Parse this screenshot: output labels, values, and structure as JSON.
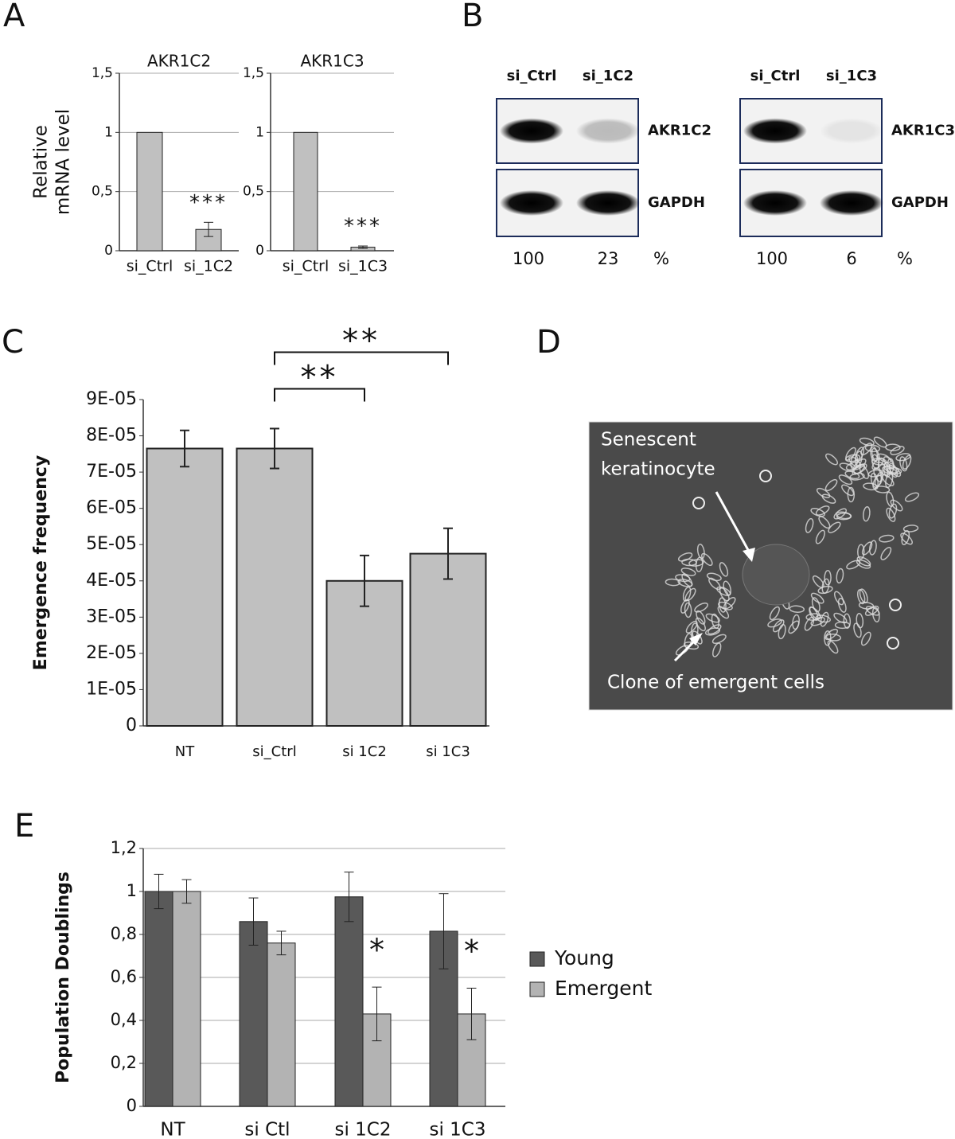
{
  "chart_data": [
    {
      "type": "bar",
      "title": "AKR1C2",
      "ylabel_lines": [
        "Relative",
        "mRNA level"
      ],
      "categories": [
        "si_Ctrl",
        "si_1C2"
      ],
      "values": [
        1,
        0.18
      ],
      "errors": [
        null,
        0.06
      ],
      "color": "#c0c0c0",
      "ylim": [
        0,
        1.5
      ],
      "yticks": [
        0,
        {
          "value": 0.5,
          "label": "0,5"
        },
        1,
        {
          "value": 1.5,
          "label": "1,5"
        }
      ],
      "grid": true,
      "annotations": [
        {
          "index": 1,
          "text": "***"
        }
      ]
    },
    {
      "type": "bar",
      "title": "AKR1C3",
      "categories": [
        "si_Ctrl",
        "si_1C3"
      ],
      "values": [
        1,
        0.03
      ],
      "errors": [
        null,
        0.01
      ],
      "color": "#c0c0c0",
      "ylim": [
        0,
        1.5
      ],
      "yticks": [
        0,
        {
          "value": 0.5,
          "label": "0,5"
        },
        1,
        {
          "value": 1.5,
          "label": "1,5"
        }
      ],
      "grid": true,
      "annotations": [
        {
          "index": 1,
          "text": "***"
        }
      ]
    },
    {
      "type": "bar",
      "ylabel": "Emergence frequency",
      "categories": [
        "NT",
        "si_Ctrl",
        "si 1C2",
        "si 1C3"
      ],
      "values": [
        7.65e-05,
        7.65e-05,
        4e-05,
        4.75e-05
      ],
      "errors": [
        5e-06,
        5.5e-06,
        7e-06,
        7e-06
      ],
      "color": "#c0c0c0",
      "ylim": [
        0,
        9e-05
      ],
      "yticks": [
        0,
        {
          "value": 1e-05,
          "label": "1E-05"
        },
        {
          "value": 2e-05,
          "label": "2E-05"
        },
        {
          "value": 3e-05,
          "label": "3E-05"
        },
        {
          "value": 4e-05,
          "label": "4E-05"
        },
        {
          "value": 5e-05,
          "label": "5E-05"
        },
        {
          "value": 6e-05,
          "label": "6E-05"
        },
        {
          "value": 7e-05,
          "label": "7E-05"
        },
        {
          "value": 8e-05,
          "label": "8E-05"
        },
        {
          "value": 9e-05,
          "label": "9E-05"
        }
      ],
      "grid": false,
      "brackets": [
        {
          "from": 1,
          "to": 2,
          "text": "**"
        },
        {
          "from": 1,
          "to": 3,
          "text": "**"
        }
      ]
    },
    {
      "type": "grouped_bar",
      "ylabel": "Population Doublings",
      "categories": [
        "NT",
        "si Ctl",
        "si 1C2",
        "si 1C3"
      ],
      "series": [
        {
          "name": "Young",
          "color": "#595959",
          "values": [
            1,
            0.86,
            0.975,
            0.815
          ],
          "errors": [
            0.08,
            0.11,
            0.115,
            0.175
          ]
        },
        {
          "name": "Emergent",
          "color": "#b3b3b3",
          "values": [
            1,
            0.76,
            0.43,
            0.43
          ],
          "errors": [
            0.055,
            0.055,
            0.125,
            0.12
          ]
        }
      ],
      "ylim": [
        0,
        1.2
      ],
      "yticks": [
        0,
        {
          "value": 0.2,
          "label": "0,2"
        },
        {
          "value": 0.4,
          "label": "0,4"
        },
        {
          "value": 0.6,
          "label": "0,6"
        },
        {
          "value": 0.8,
          "label": "0,8"
        },
        1,
        {
          "value": 1.2,
          "label": "1,2"
        }
      ],
      "grid": true,
      "legend": "right",
      "annotations": [
        {
          "category": 2,
          "series": 1,
          "text": "*"
        },
        {
          "category": 3,
          "series": 1,
          "text": "*"
        }
      ]
    }
  ],
  "panel_letters": [
    "A",
    "B",
    "C",
    "D",
    "E"
  ],
  "blots": [
    {
      "lanes": [
        "si_Ctrl",
        "si_1C2"
      ],
      "proteins": [
        "AKR1C2",
        "GAPDH"
      ],
      "quantification": [
        100,
        23
      ],
      "unit": "%"
    },
    {
      "lanes": [
        "si_Ctrl",
        "si_1C3"
      ],
      "proteins": [
        "AKR1C3",
        "GAPDH"
      ],
      "quantification": [
        100,
        6
      ],
      "unit": "%"
    }
  ],
  "micrograph": {
    "label_top": [
      "Senescent",
      "keratinocyte"
    ],
    "label_bottom": "Clone of emergent cells"
  }
}
